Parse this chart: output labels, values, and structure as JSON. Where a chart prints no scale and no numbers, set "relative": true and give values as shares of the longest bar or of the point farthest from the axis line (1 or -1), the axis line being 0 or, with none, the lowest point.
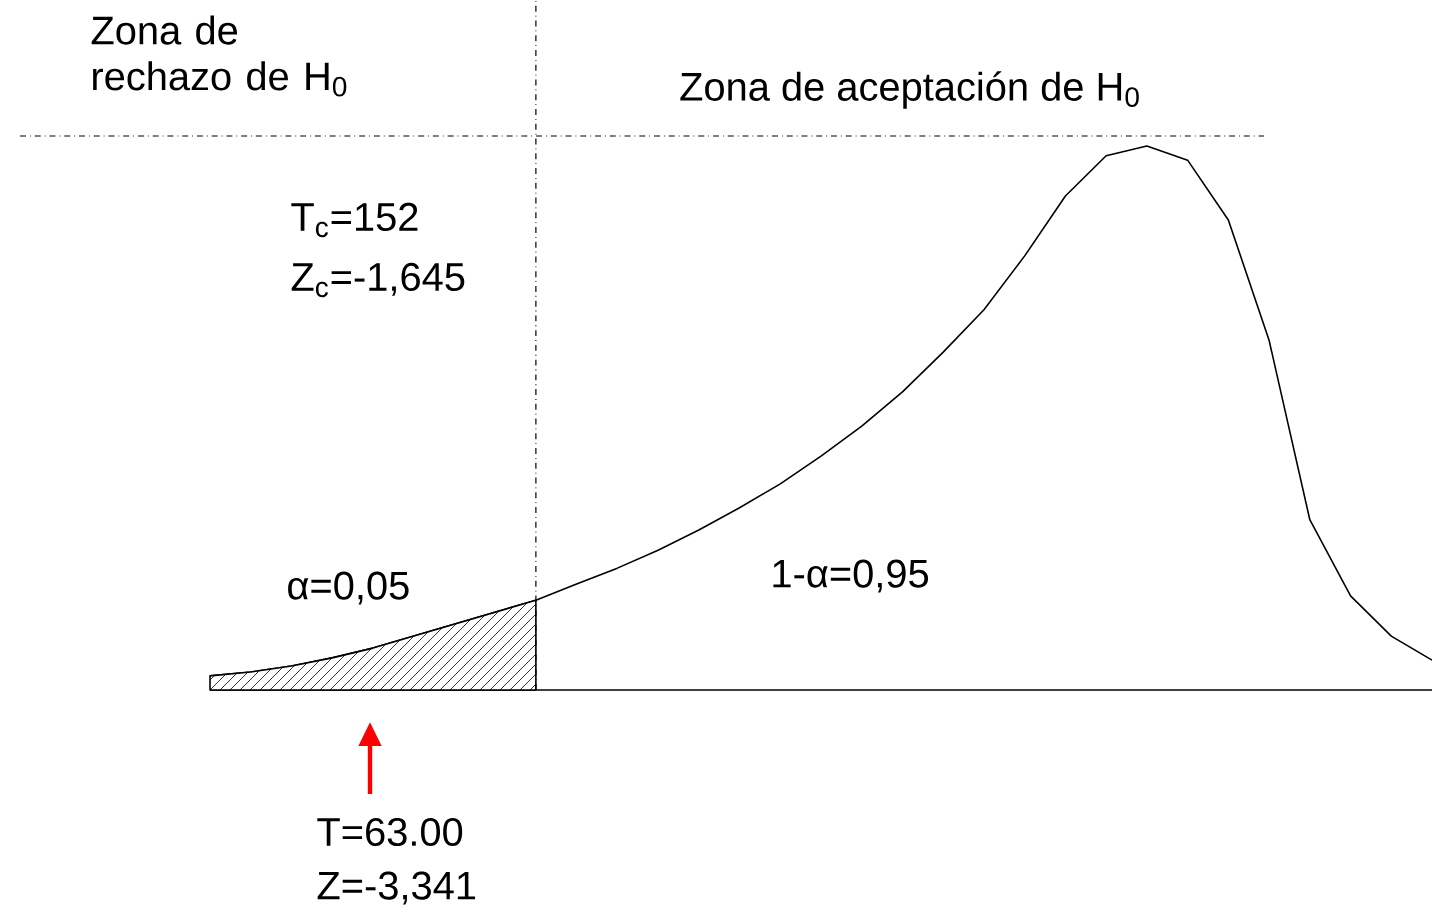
{
  "chart_data": {
    "type": "line",
    "relative": true,
    "categories": [
      null,
      null,
      null,
      null,
      null,
      null,
      null,
      null,
      null,
      null,
      null,
      null,
      null,
      null,
      null,
      null,
      null,
      null,
      null,
      null,
      null,
      null,
      null,
      null,
      null,
      null,
      null,
      null,
      null,
      null,
      null
    ],
    "series": [
      {
        "color": "#000000",
        "values": [
          0.026,
          0.033,
          0.044,
          0.059,
          0.077,
          0.099,
          0.121,
          0.143,
          0.165,
          0.195,
          0.224,
          0.257,
          0.294,
          0.335,
          0.379,
          0.43,
          0.485,
          0.548,
          0.621,
          0.699,
          0.798,
          0.908,
          0.982,
          1.0,
          0.974,
          0.864,
          0.643,
          0.313,
          0.173,
          0.099,
          0.055
        ]
      },
      {
        "type": "area",
        "color": "#000000",
        "values": [
          0.026,
          0.033,
          0.044,
          0.059,
          0.077,
          0.099,
          0.121,
          0.143,
          0.165,
          null,
          null,
          null,
          null,
          null,
          null,
          null,
          null,
          null,
          null,
          null,
          null,
          null,
          null,
          null,
          null,
          null,
          null,
          null,
          null,
          null,
          null
        ]
      }
    ],
    "annotations": [
      "Zona de rechazo de H$_{0}$",
      "Zona de aceptación de H$_{0}$",
      "T$_{c}$=152",
      "Z$_{c}$=-1,645",
      "α=0,05",
      "1-α=0,95",
      "T=63.00",
      "Z=-3,341"
    ]
  }
}
